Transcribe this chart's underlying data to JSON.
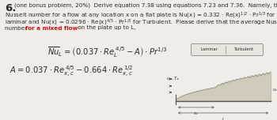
{
  "bg_color": "#f0ede8",
  "text_color": "#2a2a2a",
  "red_color": "#cc1111",
  "label_laminar": "Laminar",
  "label_turbulent": "Turbulent",
  "line1": "(one bonus problem, 20%)  Derive equation 7.38 using equations 7.23 and 7.36.  Namely, the local",
  "line2a": "Nusselt number for a flow at any location x on a flat plate is Nu(x) = 0.332",
  "line2b": " Re(x)",
  "line3a": "laminar and Nu(x) = 0.0296",
  "line3b": " Re(x)",
  "line3c": " Pr",
  "line3d": " for Turbulent.  Ple",
  "line4a": "number ",
  "line4b": "for a mixed flow",
  "line4c": " on the plate up to L,",
  "num6": "6.",
  "fs_body": 5.2,
  "fs_eq": 7.2,
  "fs_small": 4.0
}
